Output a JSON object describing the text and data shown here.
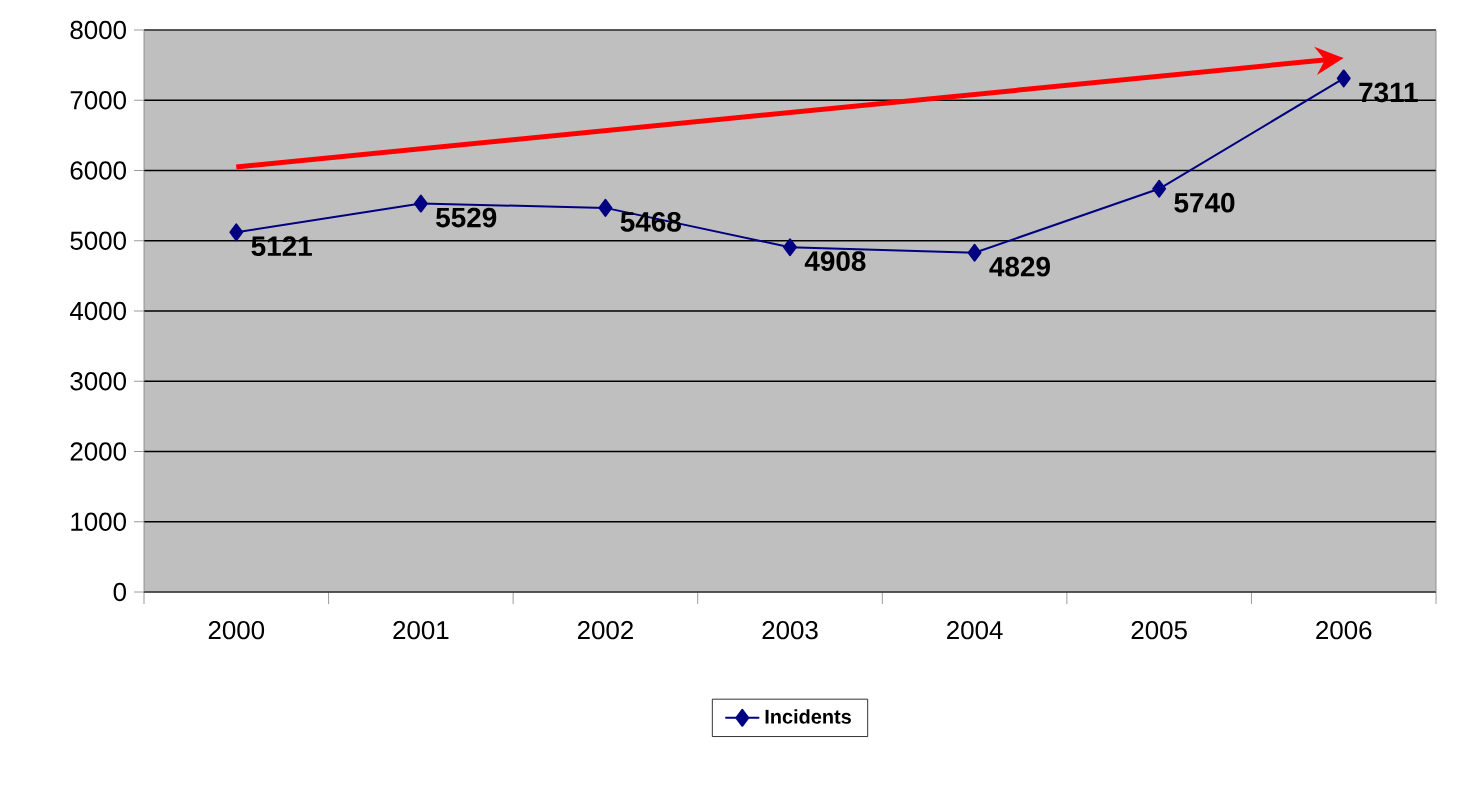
{
  "chart_data": {
    "type": "line",
    "categories": [
      "2000",
      "2001",
      "2002",
      "2003",
      "2004",
      "2005",
      "2006"
    ],
    "series": [
      {
        "name": "Incidents",
        "color": "#000080",
        "marker": "diamond",
        "values": [
          5121,
          5529,
          5468,
          4908,
          4829,
          5740,
          7311
        ],
        "value_labels": [
          "5121",
          "5529",
          "5468",
          "4908",
          "4829",
          "5740",
          "7311"
        ]
      },
      {
        "color": "#ff0000",
        "values": [
          6050,
          null,
          null,
          null,
          null,
          null,
          7600
        ]
      }
    ],
    "ylim": [
      0,
      8000
    ],
    "yticks": [
      0,
      1000,
      2000,
      3000,
      4000,
      5000,
      6000,
      7000,
      8000
    ],
    "grid": "y",
    "legend": "bottom"
  }
}
